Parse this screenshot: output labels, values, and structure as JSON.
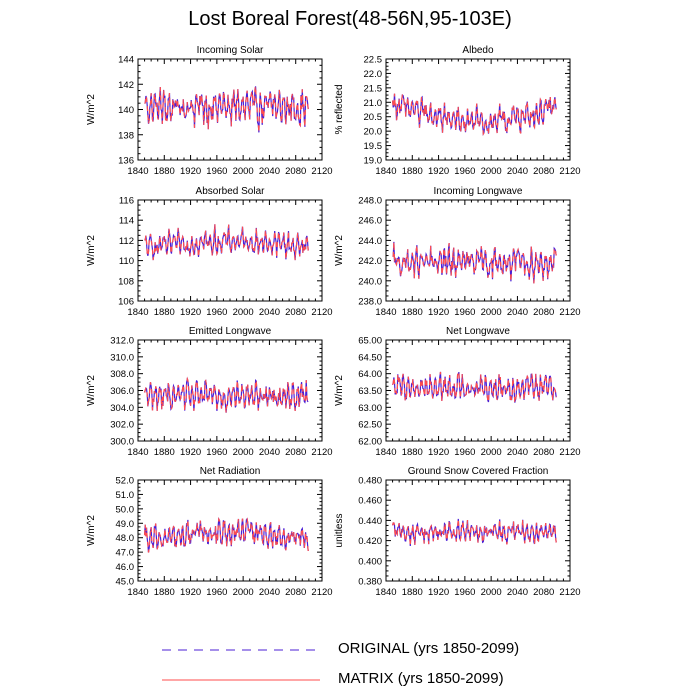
{
  "figure": {
    "title": "Lost Boreal Forest(48-56N,95-103E)"
  },
  "legend": {
    "original_label": "ORIGINAL (yrs 1850-2099)",
    "matrix_label": "MATRIX (yrs 1850-2099)"
  },
  "colors": {
    "original": "#4b1fd6",
    "matrix": "#ff4d4d",
    "axis": "#000000"
  },
  "chart_data": [
    {
      "type": "line",
      "title": "Incoming Solar",
      "ylabel": "W/m^2",
      "xlim": [
        1840,
        2120
      ],
      "xticks": [
        1840,
        1880,
        1920,
        1960,
        2000,
        2040,
        2080,
        2120
      ],
      "ylim": [
        136,
        144
      ],
      "yticks": [
        136,
        138,
        140,
        142,
        144
      ],
      "ydecimals": 0,
      "x_start": 1850,
      "x_end": 2099,
      "mean": 140.2,
      "amplitude": 2.3,
      "trend": 0,
      "series": [
        {
          "name": "ORIGINAL (yrs 1850-2099)",
          "style": "dashed"
        },
        {
          "name": "MATRIX (yrs 1850-2099)",
          "style": "solid"
        }
      ]
    },
    {
      "type": "line",
      "title": "Albedo",
      "ylabel": "% reflected",
      "xlim": [
        1840,
        2120
      ],
      "xticks": [
        1840,
        1880,
        1920,
        1960,
        2000,
        2040,
        2080,
        2120
      ],
      "ylim": [
        19.0,
        22.5
      ],
      "yticks": [
        19.0,
        19.5,
        20.0,
        20.5,
        21.0,
        21.5,
        22.0,
        22.5
      ],
      "ydecimals": 1,
      "x_start": 1850,
      "x_end": 2099,
      "mean": 20.7,
      "amplitude": 0.75,
      "trend": -0.4,
      "series": [
        {
          "name": "ORIGINAL (yrs 1850-2099)",
          "style": "dashed"
        },
        {
          "name": "MATRIX (yrs 1850-2099)",
          "style": "solid"
        }
      ]
    },
    {
      "type": "line",
      "title": "Absorbed Solar",
      "ylabel": "W/m^2",
      "xlim": [
        1840,
        2120
      ],
      "xticks": [
        1840,
        1880,
        1920,
        1960,
        2000,
        2040,
        2080,
        2120
      ],
      "ylim": [
        106,
        116
      ],
      "yticks": [
        106,
        108,
        110,
        112,
        114,
        116
      ],
      "ydecimals": 0,
      "x_start": 1850,
      "x_end": 2099,
      "mean": 111.5,
      "amplitude": 1.9,
      "trend": 0.4,
      "series": [
        {
          "name": "ORIGINAL (yrs 1850-2099)",
          "style": "dashed"
        },
        {
          "name": "MATRIX (yrs 1850-2099)",
          "style": "solid"
        }
      ]
    },
    {
      "type": "line",
      "title": "Incoming Longwave",
      "ylabel": "W/m^2",
      "xlim": [
        1840,
        2120
      ],
      "xticks": [
        1840,
        1880,
        1920,
        1960,
        2000,
        2040,
        2080,
        2120
      ],
      "ylim": [
        238.0,
        248.0
      ],
      "yticks": [
        238.0,
        240.0,
        242.0,
        244.0,
        246.0,
        248.0
      ],
      "ydecimals": 1,
      "x_start": 1850,
      "x_end": 2099,
      "mean": 241.8,
      "amplitude": 2.3,
      "trend": 0,
      "series": [
        {
          "name": "ORIGINAL (yrs 1850-2099)",
          "style": "dashed"
        },
        {
          "name": "MATRIX (yrs 1850-2099)",
          "style": "solid"
        }
      ]
    },
    {
      "type": "line",
      "title": "Emitted Longwave",
      "ylabel": "W/m^2",
      "xlim": [
        1840,
        2120
      ],
      "xticks": [
        1840,
        1880,
        1920,
        1960,
        2000,
        2040,
        2080,
        2120
      ],
      "ylim": [
        300.0,
        312.0
      ],
      "yticks": [
        300.0,
        302.0,
        304.0,
        306.0,
        308.0,
        310.0,
        312.0
      ],
      "ydecimals": 1,
      "x_start": 1850,
      "x_end": 2099,
      "mean": 305.4,
      "amplitude": 2.6,
      "trend": 0,
      "series": [
        {
          "name": "ORIGINAL (yrs 1850-2099)",
          "style": "dashed"
        },
        {
          "name": "MATRIX (yrs 1850-2099)",
          "style": "solid"
        }
      ]
    },
    {
      "type": "line",
      "title": "Net Longwave",
      "ylabel": "W/m^2",
      "xlim": [
        1840,
        2120
      ],
      "xticks": [
        1840,
        1880,
        1920,
        1960,
        2000,
        2040,
        2080,
        2120
      ],
      "ylim": [
        62.0,
        65.0
      ],
      "yticks": [
        62.0,
        62.5,
        63.0,
        63.5,
        64.0,
        64.5,
        65.0
      ],
      "ydecimals": 2,
      "x_start": 1850,
      "x_end": 2099,
      "mean": 63.6,
      "amplitude": 0.6,
      "trend": 0,
      "series": [
        {
          "name": "ORIGINAL (yrs 1850-2099)",
          "style": "dashed"
        },
        {
          "name": "MATRIX (yrs 1850-2099)",
          "style": "solid"
        }
      ]
    },
    {
      "type": "line",
      "title": "Net Radiation",
      "ylabel": "W/m^2",
      "xlim": [
        1840,
        2120
      ],
      "xticks": [
        1840,
        1880,
        1920,
        1960,
        2000,
        2040,
        2080,
        2120
      ],
      "ylim": [
        45.0,
        52.0
      ],
      "yticks": [
        45.0,
        46.0,
        47.0,
        48.0,
        49.0,
        50.0,
        51.0,
        52.0
      ],
      "ydecimals": 1,
      "x_start": 1850,
      "x_end": 2099,
      "mean": 48.0,
      "amplitude": 1.4,
      "trend": 0.4,
      "series": [
        {
          "name": "ORIGINAL (yrs 1850-2099)",
          "style": "dashed"
        },
        {
          "name": "MATRIX (yrs 1850-2099)",
          "style": "solid"
        }
      ]
    },
    {
      "type": "line",
      "title": "Ground Snow Covered Fraction",
      "ylabel": "unitless",
      "xlim": [
        1840,
        2120
      ],
      "xticks": [
        1840,
        1880,
        1920,
        1960,
        2000,
        2040,
        2080,
        2120
      ],
      "ylim": [
        0.38,
        0.48
      ],
      "yticks": [
        0.38,
        0.4,
        0.42,
        0.44,
        0.46,
        0.48
      ],
      "ydecimals": 3,
      "x_start": 1850,
      "x_end": 2099,
      "mean": 0.428,
      "amplitude": 0.017,
      "trend": 0,
      "series": [
        {
          "name": "ORIGINAL (yrs 1850-2099)",
          "style": "dashed"
        },
        {
          "name": "MATRIX (yrs 1850-2099)",
          "style": "solid"
        }
      ]
    }
  ]
}
